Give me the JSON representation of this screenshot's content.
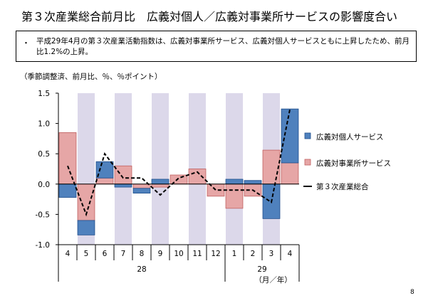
{
  "page": {
    "title": "第３次産業総合前月比　広義対個人／広義対事業所サービスの影響度合い",
    "bullet": "・",
    "note": "平成29年4月の第３次産業活動指数は、広義対事業所サービス、広義対個人サービスともに上昇したため、前月比1.2%の上昇。",
    "unit_label": "（季節調整済、前月比、％、％ポイント）",
    "page_number": "8"
  },
  "chart_data": {
    "type": "bar",
    "categories": [
      "4",
      "5",
      "6",
      "7",
      "8",
      "9",
      "10",
      "11",
      "12",
      "1",
      "2",
      "3",
      "4"
    ],
    "year_labels": [
      "28",
      "29"
    ],
    "x_unit": "（月／年）",
    "series": [
      {
        "name": "広義対個人サービス",
        "kind": "bar",
        "color": "#4F81BD",
        "values": [
          -0.22,
          -0.24,
          0.27,
          -0.05,
          -0.08,
          0.08,
          0.0,
          0.0,
          0.0,
          0.08,
          0.06,
          -0.57,
          0.89
        ]
      },
      {
        "name": "広義対事業所サービス",
        "kind": "bar",
        "color": "#E6A6A6",
        "values": [
          0.85,
          -0.6,
          0.1,
          0.3,
          -0.07,
          -0.05,
          0.15,
          0.25,
          -0.2,
          -0.4,
          -0.2,
          0.56,
          0.35
        ]
      },
      {
        "name": "第３次産業総合",
        "kind": "line",
        "color": "#000000",
        "values": [
          0.3,
          -0.5,
          0.5,
          0.1,
          0.1,
          -0.18,
          0.1,
          0.2,
          -0.1,
          -0.1,
          -0.1,
          -0.3,
          1.23
        ]
      }
    ],
    "yticks": [
      "1.5",
      "1.0",
      "0.5",
      "0.0",
      "-0.5",
      "-1.0"
    ],
    "ylim": [
      -1.0,
      1.5
    ],
    "shaded_categories": [
      1,
      3,
      5,
      7,
      9,
      11
    ],
    "legend_position": "right"
  }
}
